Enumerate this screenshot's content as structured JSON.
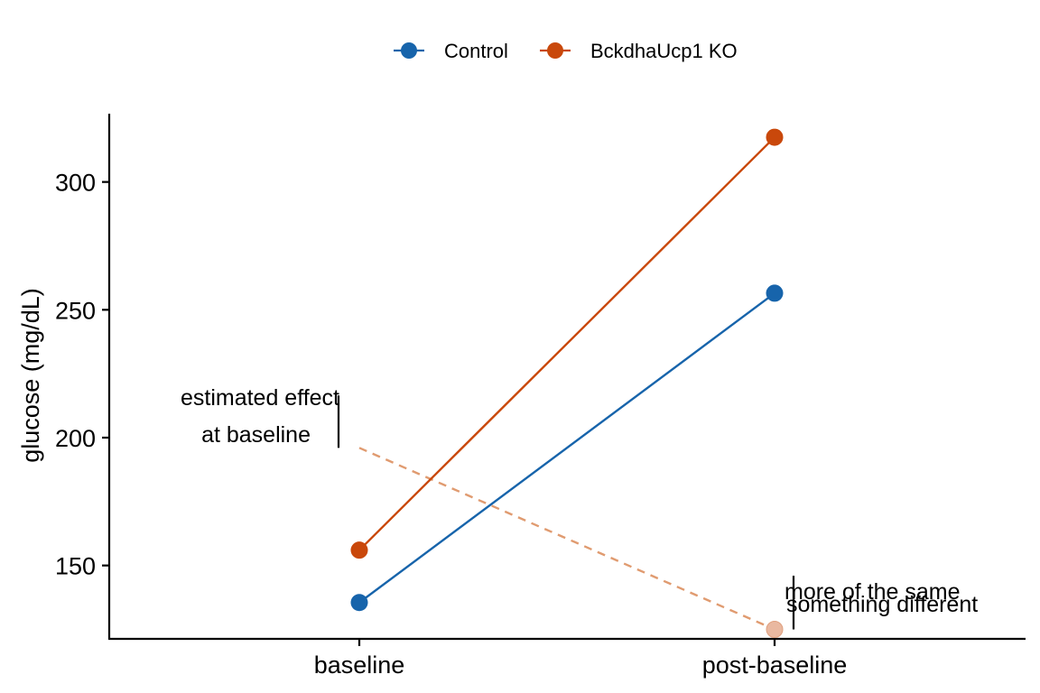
{
  "chart_data": {
    "type": "line",
    "categories": [
      "baseline",
      "post-baseline"
    ],
    "ylabel": "glucose (mg/dL)",
    "xlabel": "",
    "ylim": [
      121.3,
      326.7
    ],
    "yticks": [
      150,
      200,
      250,
      300
    ],
    "legend_position": "top",
    "series": [
      {
        "name": "Control",
        "color": "#1764ab",
        "values": [
          135.5,
          256.5
        ],
        "style": "solid"
      },
      {
        "name": "BckdhaUcp1 KO",
        "color": "#c9480b",
        "values": [
          156,
          317.5
        ],
        "style": "solid"
      }
    ],
    "counterfactual": {
      "color": "#e09b70",
      "style": "dashed",
      "values": [
        196,
        125
      ],
      "point_on": "post-baseline"
    },
    "annotations": [
      {
        "lines": [
          "estimated effect",
          "at baseline"
        ],
        "bracket_y": [
          196,
          216.5
        ],
        "at": "baseline"
      },
      {
        "lines": [
          "more of the same"
        ],
        "bracket_y": [
          125,
          146
        ],
        "at": "post-baseline"
      },
      {
        "lines": [
          "something different"
        ],
        "bracket_y": [
          125,
          146
        ],
        "at": "post-baseline"
      }
    ]
  }
}
